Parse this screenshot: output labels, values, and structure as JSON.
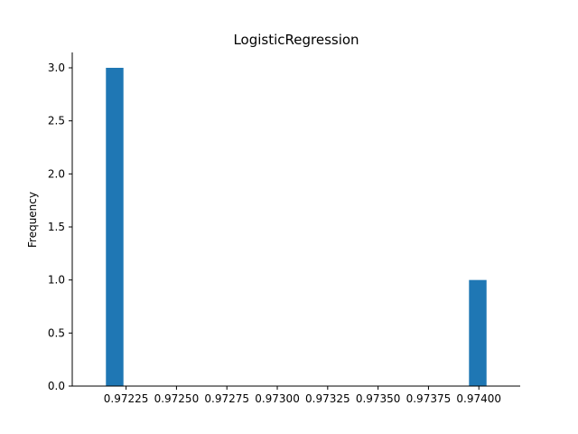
{
  "chart_data": {
    "type": "bar",
    "title": "LogisticRegression",
    "xlabel": "",
    "ylabel": "Frequency",
    "xlim": [
      0.971983,
      0.974205
    ],
    "ylim": [
      0,
      3.0
    ],
    "xticks": [
      "0.97225",
      "0.97250",
      "0.97275",
      "0.97300",
      "0.97325",
      "0.97350",
      "0.97375",
      "0.97400"
    ],
    "yticks": [
      "0.0",
      "0.5",
      "1.0",
      "1.5",
      "2.0",
      "2.5",
      "3.0"
    ],
    "bins": [
      {
        "x0": 0.97215,
        "x1": 0.972237,
        "value": 3
      },
      {
        "x0": 0.973951,
        "x1": 0.974038,
        "value": 1
      }
    ],
    "grid": false,
    "colors": {
      "bar": "#1f77b4",
      "axis": "#000000"
    }
  }
}
